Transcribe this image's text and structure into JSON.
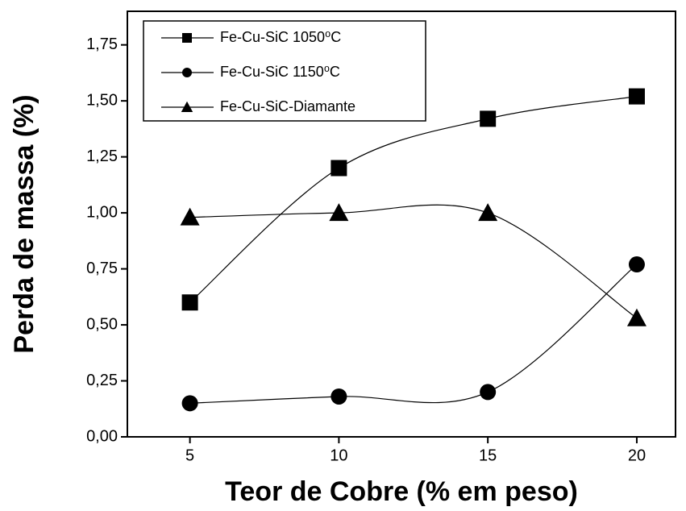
{
  "chart_data": {
    "type": "line",
    "xlabel": "Teor de Cobre (% em peso)",
    "ylabel": "Perda de massa (%)",
    "x": [
      5,
      10,
      15,
      20
    ],
    "series": [
      {
        "name": "Fe-Cu-SiC 1050⁰C",
        "color": "#000000",
        "marker": "square",
        "values": [
          0.6,
          1.2,
          1.42,
          1.52
        ]
      },
      {
        "name": "Fe-Cu-SiC 1150⁰C",
        "color": "#000000",
        "marker": "circle",
        "values": [
          0.15,
          0.18,
          0.2,
          0.77
        ]
      },
      {
        "name": "Fe-Cu-SiC-Diamante",
        "color": "#000000",
        "marker": "triangle",
        "values": [
          0.98,
          1.0,
          1.0,
          0.53
        ]
      }
    ],
    "xlim": [
      2.9,
      21.3
    ],
    "ylim": [
      0,
      1.9
    ],
    "xticks": [
      5,
      10,
      15,
      20
    ],
    "yticks": [
      {
        "value": 0,
        "label": "0,00"
      },
      {
        "value": 0.25,
        "label": "0,25"
      },
      {
        "value": 0.5,
        "label": "0,50"
      },
      {
        "value": 0.75,
        "label": "0,75"
      },
      {
        "value": 1,
        "label": "1,00"
      },
      {
        "value": 1.25,
        "label": "1,25"
      },
      {
        "value": 1.5,
        "label": "1,50"
      },
      {
        "value": 1.75,
        "label": "1,75"
      }
    ],
    "legend": "upper left"
  }
}
